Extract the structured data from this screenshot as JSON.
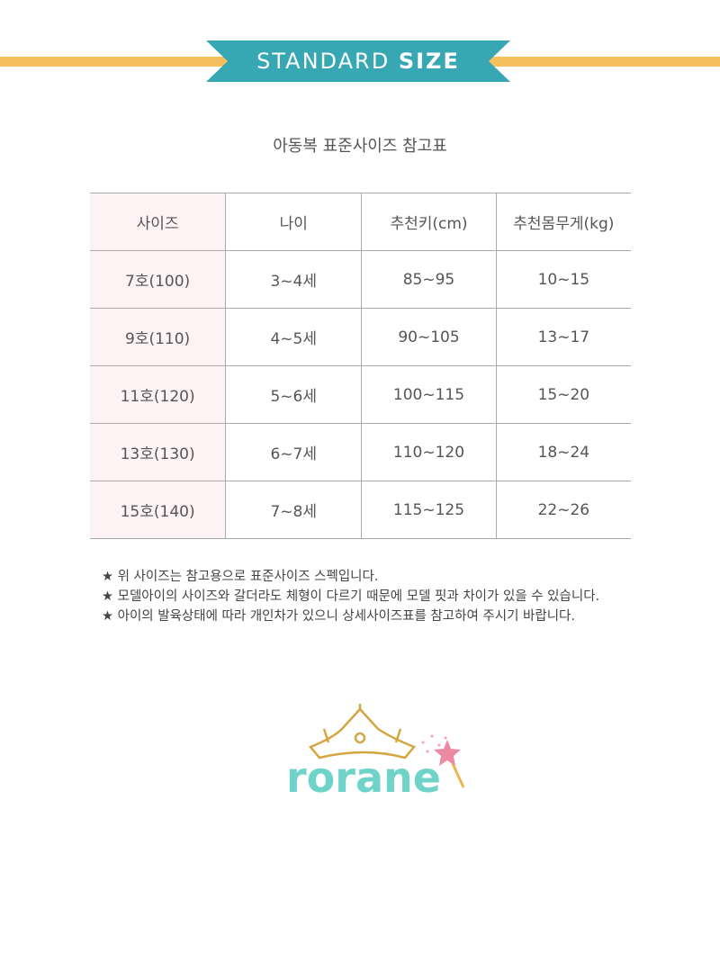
{
  "banner": {
    "text_regular": "STANDARD",
    "text_bold": "SIZE",
    "color": "#36a7b3",
    "stripe_color": "#f6c05f"
  },
  "title": "아동복 표준사이즈 참고표",
  "table": {
    "headers": [
      "사이즈",
      "나이",
      "추천키(cm)",
      "추천몸무게(kg)"
    ],
    "rows": [
      [
        "7호(100)",
        "3~4세",
        "85~95",
        "10~15"
      ],
      [
        "9호(110)",
        "4~5세",
        "90~105",
        "13~17"
      ],
      [
        "11호(120)",
        "5~6세",
        "100~115",
        "15~20"
      ],
      [
        "13호(130)",
        "6~7세",
        "110~120",
        "18~24"
      ],
      [
        "15호(140)",
        "7~8세",
        "115~125",
        "22~26"
      ]
    ]
  },
  "notes": [
    "★ 위 사이즈는 참고용으로 표준사이즈 스펙입니다.",
    "★ 모델아이의 사이즈와 갈더라도 체형이 다르기 때문에 모델 핏과 차이가 있을 수 있습니다.",
    "★ 아이의 발육상태에 따라 개인차가 있으니 상세사이즈표를 참고하여 주시기 바랍니다."
  ],
  "logo": {
    "text": "rorane",
    "color": "#6fd3c9"
  }
}
